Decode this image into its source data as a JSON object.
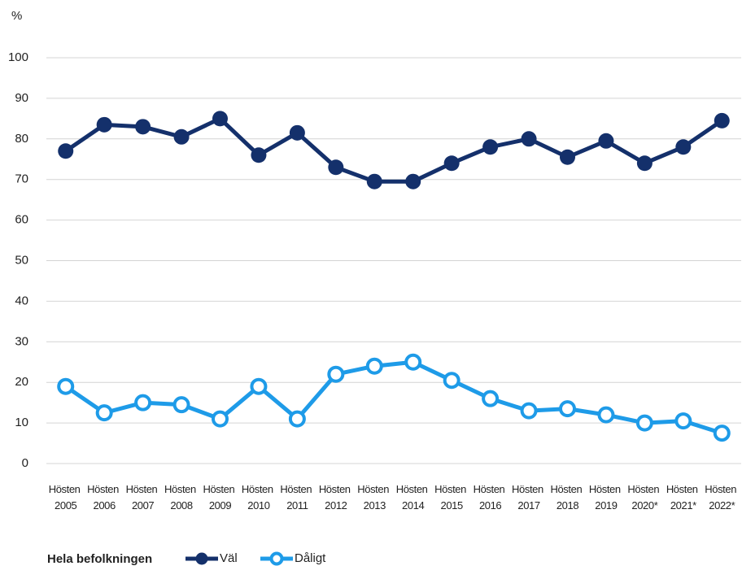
{
  "chart_data": {
    "type": "line",
    "y_label": "%",
    "categories": [
      "Hösten 2005",
      "Hösten 2006",
      "Hösten 2007",
      "Hösten 2008",
      "Hösten 2009",
      "Hösten 2010",
      "Hösten 2011",
      "Hösten 2012",
      "Hösten 2013",
      "Hösten 2014",
      "Hösten 2015",
      "Hösten 2016",
      "Hösten 2017",
      "Hösten 2018",
      "Hösten 2019",
      "Hösten 2020*",
      "Hösten 2021*",
      "Hösten 2022*"
    ],
    "series": [
      {
        "name": "Väl",
        "color": "#14306b",
        "marker": "filled",
        "values": [
          77,
          83.5,
          83,
          80.5,
          85,
          76,
          81.5,
          73,
          69.5,
          69.5,
          74,
          78,
          80,
          75.5,
          79.5,
          74,
          78,
          84.5
        ]
      },
      {
        "name": "Dåligt",
        "color": "#1e9be8",
        "marker": "hollow",
        "values": [
          19,
          12.5,
          15,
          14.5,
          11,
          19,
          11,
          22,
          24,
          25,
          20.5,
          16,
          13,
          13.5,
          12,
          10,
          10.5,
          7.5
        ]
      }
    ],
    "legend_title": "Hela befolkningen",
    "ylim": [
      0,
      100
    ],
    "yticks": [
      0,
      10,
      20,
      30,
      40,
      50,
      60,
      70,
      80,
      90,
      100
    ],
    "grid": true
  }
}
